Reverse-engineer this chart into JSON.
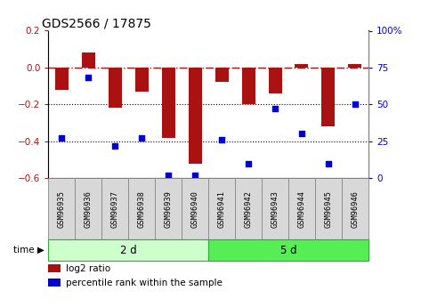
{
  "title": "GDS2566 / 17875",
  "samples": [
    "GSM96935",
    "GSM96936",
    "GSM96937",
    "GSM96938",
    "GSM96939",
    "GSM96940",
    "GSM96941",
    "GSM96942",
    "GSM96943",
    "GSM96944",
    "GSM96945",
    "GSM96946"
  ],
  "log2_ratio": [
    -0.12,
    0.08,
    -0.22,
    -0.13,
    -0.38,
    -0.52,
    -0.08,
    -0.2,
    -0.14,
    0.02,
    -0.32,
    0.02
  ],
  "percentile_rank": [
    27,
    68,
    22,
    27,
    2,
    2,
    26,
    10,
    47,
    30,
    10,
    50
  ],
  "bar_color": "#aa1111",
  "dot_color": "#0000cc",
  "groups": [
    {
      "label": "2 d",
      "start": 0,
      "end": 6
    },
    {
      "label": "5 d",
      "start": 6,
      "end": 12
    }
  ],
  "group_fill_colors": [
    "#ccffcc",
    "#55ee55"
  ],
  "group_edge_color": "#33aa33",
  "label_box_color": "#d8d8d8",
  "label_box_edge": "#888888",
  "ylim_left": [
    -0.6,
    0.2
  ],
  "ylim_right": [
    0,
    100
  ],
  "yticks_left": [
    -0.6,
    -0.4,
    -0.2,
    0.0,
    0.2
  ],
  "yticks_right": [
    0,
    25,
    50,
    75,
    100
  ],
  "dotted_lines": [
    -0.2,
    -0.4
  ],
  "background_color": "#ffffff",
  "legend_red_label": "log2 ratio",
  "legend_blue_label": "percentile rank within the sample"
}
